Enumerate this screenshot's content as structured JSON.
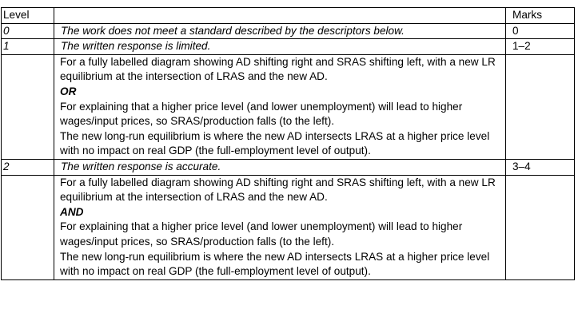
{
  "table": {
    "header": {
      "level": "Level",
      "descriptor": "",
      "marks": "Marks"
    },
    "rows": [
      {
        "level": "0",
        "descriptor": "The work does not meet a standard described by the descriptors below.",
        "marks": "0"
      },
      {
        "level": "1",
        "descriptor": "The written response is limited.",
        "marks": "1–2",
        "detail": {
          "part1": "For a fully labelled diagram showing AD shifting right and SRAS shifting left, with a new LR equilibrium at the intersection of LRAS and the new AD.",
          "connector": "OR",
          "part2": "For explaining that a higher price level (and lower unemployment) will lead to higher wages/input prices, so SRAS/production falls (to the left).",
          "part3": "The new long-run equilibrium is where the new AD intersects LRAS at a higher price level with no impact on real GDP (the full-employment level of output)."
        }
      },
      {
        "level": "2",
        "descriptor": "The written response is accurate.",
        "marks": "3–4",
        "detail": {
          "part1": "For a fully labelled diagram showing AD shifting right and SRAS shifting left, with a new LR equilibrium at the intersection of LRAS and the new AD.",
          "connector": "AND",
          "part2": "For explaining that a higher price level (and lower unemployment) will lead to higher wages/input prices, so SRAS/production falls (to the left).",
          "part3": "The new long-run equilibrium is where the new AD intersects LRAS at a higher price level with no impact on real GDP (the full-employment level of output)."
        }
      }
    ]
  }
}
